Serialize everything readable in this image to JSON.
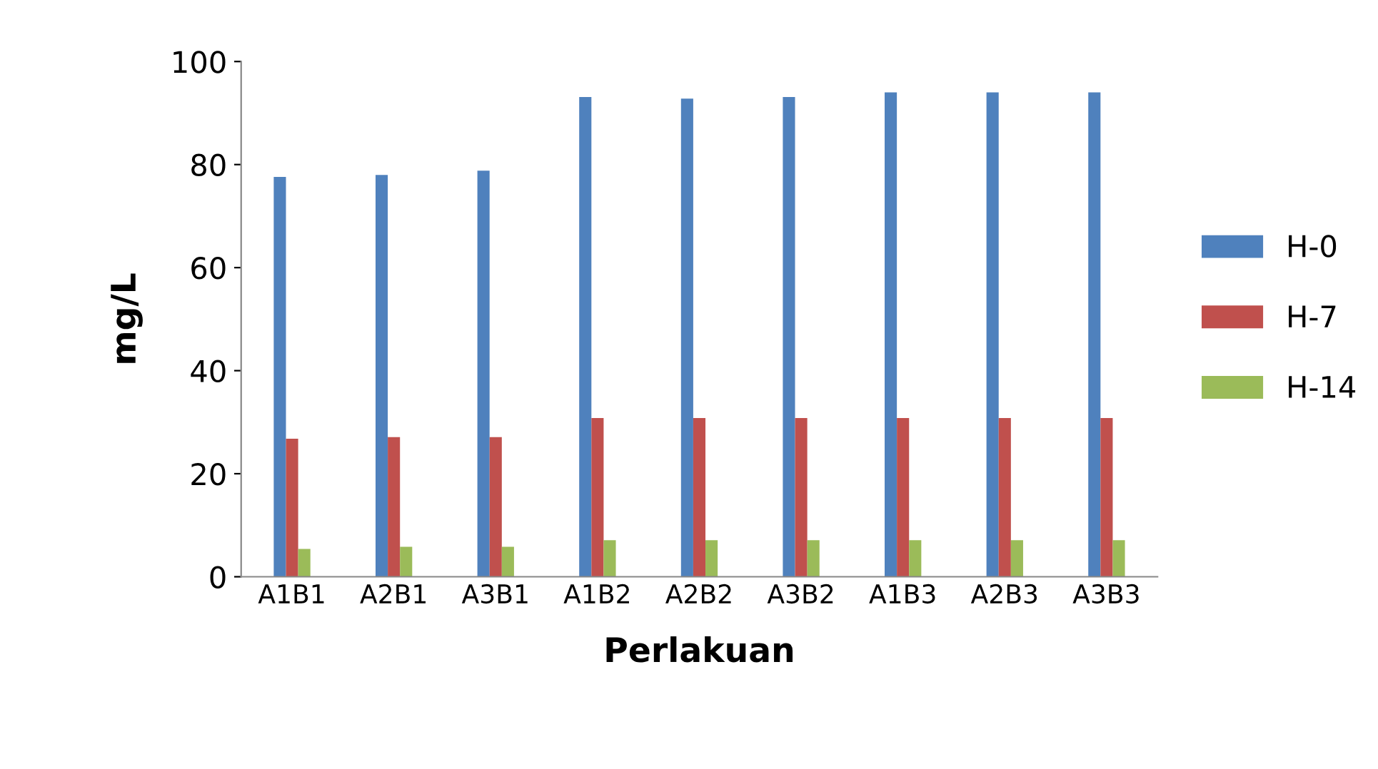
{
  "chart_data": {
    "type": "bar",
    "xlabel": "Perlakuan",
    "ylabel": "mg/L",
    "categories": [
      "A1B1",
      "A2B1",
      "A3B1",
      "A1B2",
      "A2B2",
      "A3B2",
      "A1B3",
      "A2B3",
      "A3B3"
    ],
    "series": [
      {
        "name": "H-0",
        "color": "#4f81bd",
        "values": [
          77.6,
          78.0,
          78.8,
          93.1,
          92.8,
          93.1,
          94.0,
          94.0,
          94.0
        ]
      },
      {
        "name": "H-7",
        "color": "#c0504d",
        "values": [
          26.8,
          27.1,
          27.1,
          30.8,
          30.8,
          30.8,
          30.8,
          30.8,
          30.8
        ]
      },
      {
        "name": "H-14",
        "color": "#9bbb59",
        "values": [
          5.4,
          5.8,
          5.8,
          7.1,
          7.1,
          7.1,
          7.1,
          7.1,
          7.1
        ]
      }
    ],
    "ylim": [
      0,
      100
    ],
    "yticks": [
      0,
      20,
      40,
      60,
      80,
      100
    ],
    "grid": false,
    "legend": "right"
  }
}
